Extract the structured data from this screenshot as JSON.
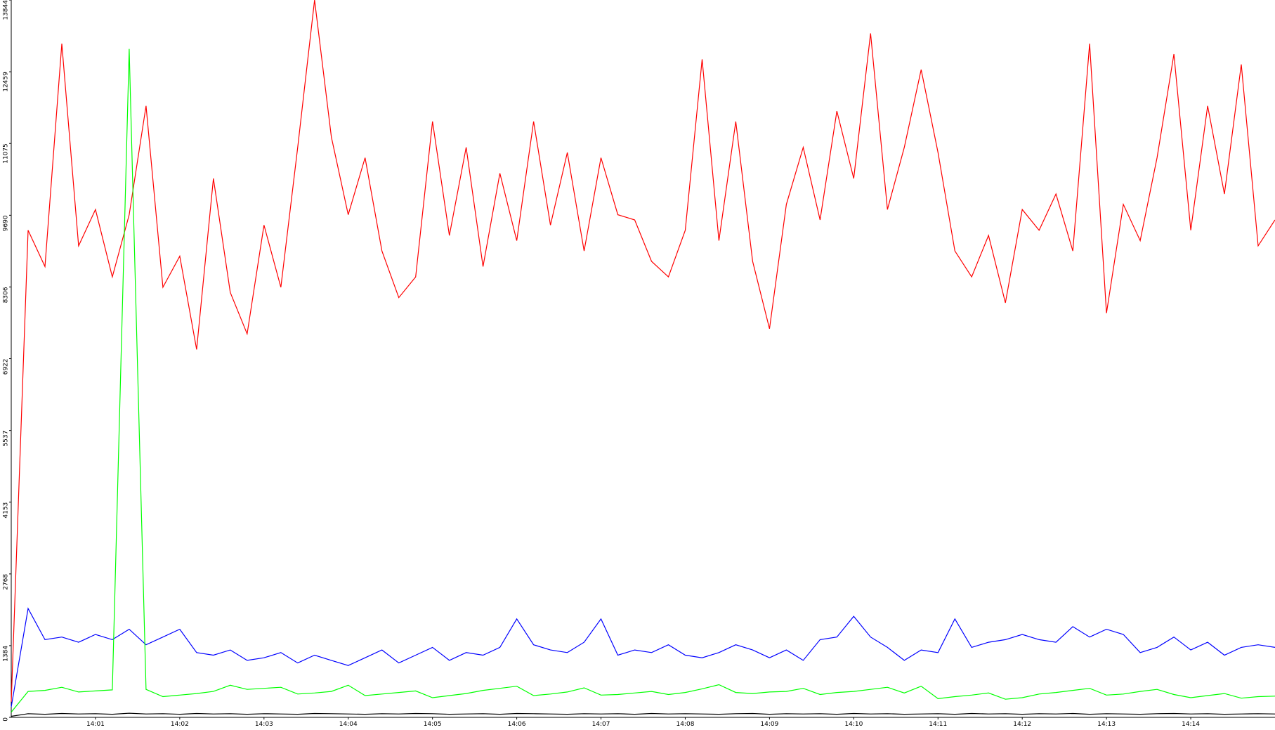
{
  "chart_data": {
    "type": "line",
    "x": [
      0,
      0.2,
      0.4,
      0.6,
      0.8,
      1,
      1.2,
      1.4,
      1.6,
      1.8,
      2,
      2.2,
      2.4,
      2.6,
      2.8,
      3,
      3.2,
      3.4,
      3.6,
      3.8,
      4,
      4.2,
      4.4,
      4.6,
      4.8,
      5,
      5.2,
      5.4,
      5.6,
      5.8,
      6,
      6.2,
      6.4,
      6.6,
      6.8,
      7,
      7.2,
      7.4,
      7.6,
      7.8,
      8,
      8.2,
      8.4,
      8.6,
      8.8,
      9,
      9.2,
      9.4,
      9.6,
      9.8,
      10,
      10.2,
      10.4,
      10.6,
      10.8,
      11,
      11.2,
      11.4,
      11.6,
      11.8,
      12,
      12.2,
      12.4,
      12.6,
      12.8,
      13,
      13.2,
      13.4,
      13.6,
      13.8,
      14,
      14.2,
      14.4,
      14.6,
      14.8,
      15
    ],
    "series": [
      {
        "color": "#ff0000",
        "values": [
          300,
          9400,
          8700,
          13000,
          9100,
          9800,
          8500,
          9700,
          11800,
          8300,
          8900,
          7100,
          10400,
          8200,
          7400,
          9500,
          8300,
          11000,
          13844,
          11200,
          9700,
          10800,
          9000,
          8100,
          8500,
          11500,
          9300,
          11000,
          8700,
          10500,
          9200,
          11500,
          9500,
          10900,
          9000,
          10800,
          9700,
          9600,
          8800,
          8500,
          9400,
          12700,
          9200,
          11500,
          8800,
          7500,
          9900,
          11000,
          9600,
          11700,
          10400,
          13200,
          9800,
          11000,
          12500,
          10900,
          9000,
          8500,
          9300,
          8000,
          9800,
          9400,
          10100,
          9000,
          13000,
          7800,
          9900,
          9200,
          10800,
          12800,
          9400,
          11800,
          10100,
          12600,
          9100,
          9600
        ]
      },
      {
        "color": "#0000ff",
        "values": [
          200,
          2100,
          1500,
          1550,
          1450,
          1600,
          1500,
          1700,
          1400,
          1550,
          1700,
          1250,
          1200,
          1300,
          1100,
          1150,
          1250,
          1050,
          1200,
          1100,
          1000,
          1150,
          1300,
          1050,
          1200,
          1350,
          1100,
          1250,
          1200,
          1350,
          1900,
          1400,
          1300,
          1250,
          1450,
          1900,
          1200,
          1300,
          1250,
          1400,
          1200,
          1150,
          1250,
          1400,
          1300,
          1150,
          1300,
          1100,
          1500,
          1550,
          1950,
          1550,
          1350,
          1100,
          1300,
          1250,
          1900,
          1350,
          1450,
          1500,
          1600,
          1500,
          1450,
          1750,
          1550,
          1700,
          1600,
          1250,
          1350,
          1550,
          1300,
          1450,
          1200,
          1350,
          1400,
          1350
        ]
      },
      {
        "color": "#00ff00",
        "values": [
          100,
          500,
          520,
          580,
          490,
          510,
          530,
          12900,
          540,
          400,
          430,
          460,
          500,
          620,
          540,
          560,
          580,
          450,
          470,
          500,
          620,
          420,
          450,
          480,
          510,
          380,
          420,
          460,
          520,
          560,
          600,
          420,
          450,
          490,
          570,
          430,
          440,
          470,
          500,
          440,
          480,
          550,
          630,
          480,
          460,
          490,
          500,
          560,
          440,
          480,
          500,
          540,
          580,
          470,
          600,
          360,
          400,
          430,
          470,
          350,
          380,
          450,
          480,
          520,
          560,
          430,
          450,
          500,
          540,
          440,
          380,
          420,
          460,
          370,
          400,
          410
        ]
      },
      {
        "color": "#000000",
        "values": [
          20,
          70,
          60,
          75,
          65,
          70,
          60,
          80,
          65,
          70,
          60,
          75,
          65,
          70,
          60,
          70,
          65,
          60,
          75,
          70,
          65,
          60,
          70,
          65,
          75,
          70,
          60,
          65,
          70,
          60,
          75,
          70,
          65,
          60,
          70,
          65,
          70,
          60,
          75,
          65,
          70,
          65,
          60,
          70,
          75,
          60,
          70,
          65,
          70,
          60,
          75,
          65,
          70,
          60,
          65,
          70,
          60,
          75,
          65,
          70,
          60,
          70,
          65,
          75,
          60,
          70,
          65,
          60,
          70,
          75,
          65,
          70,
          60,
          65,
          70,
          65
        ]
      }
    ],
    "xlim": [
      0,
      15
    ],
    "ylim": [
      0,
      13844
    ],
    "yticks": [
      0,
      1384,
      2768,
      4153,
      5537,
      6922,
      8306,
      9690,
      11075,
      12459,
      13844
    ],
    "xticks": [
      {
        "value": 1,
        "label": "14:01"
      },
      {
        "value": 2,
        "label": "14:02"
      },
      {
        "value": 3,
        "label": "14:03"
      },
      {
        "value": 4,
        "label": "14:04"
      },
      {
        "value": 5,
        "label": "14:05"
      },
      {
        "value": 6,
        "label": "14:06"
      },
      {
        "value": 7,
        "label": "14:07"
      },
      {
        "value": 8,
        "label": "14:08"
      },
      {
        "value": 9,
        "label": "14:09"
      },
      {
        "value": 10,
        "label": "14:10"
      },
      {
        "value": 11,
        "label": "14:11"
      },
      {
        "value": 12,
        "label": "14:12"
      },
      {
        "value": 13,
        "label": "14:13"
      },
      {
        "value": 14,
        "label": "14:14"
      }
    ]
  }
}
